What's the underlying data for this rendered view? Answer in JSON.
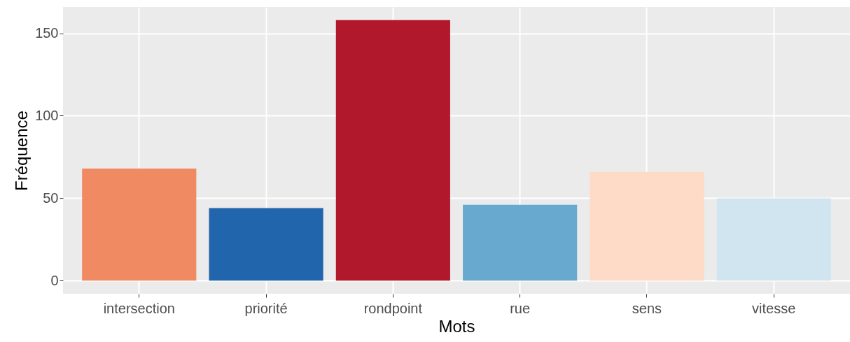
{
  "chart_data": {
    "type": "bar",
    "xlabel": "Mots",
    "ylabel": "Fréquence",
    "categories": [
      "intersection",
      "priorité",
      "rondpoint",
      "rue",
      "sens",
      "vitesse"
    ],
    "values": [
      68,
      44,
      158,
      46,
      66,
      50
    ],
    "colors": [
      "#ef8a62",
      "#2166ac",
      "#b2182b",
      "#67a9cf",
      "#fddbc7",
      "#d1e5f0"
    ],
    "ylim": [
      -7.9,
      165.9
    ],
    "yticks": [
      0,
      50,
      100,
      150
    ],
    "grid": true
  }
}
